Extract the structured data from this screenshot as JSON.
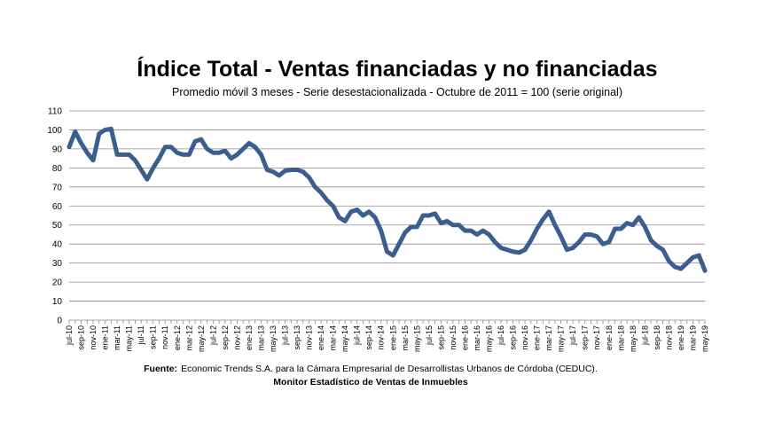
{
  "chart_data": {
    "type": "line",
    "title": "Índice Total - Ventas financiadas y no financiadas",
    "subtitle": "Promedio móvil 3 meses - Serie desestacionalizada - Octubre de 2011 = 100 (serie original)",
    "source_label": "Fuente:",
    "source_text": "Economic Trends S.A. para la Cámara Empresarial de Desarrollistas Urbanos de Córdoba (CEDUC).",
    "source_line2": "Monitor Estadístico de Ventas de Inmuebles",
    "categories": [
      "jul-10",
      null,
      "sep-10",
      null,
      "nov-10",
      null,
      "ene-11",
      null,
      "mar-11",
      null,
      "may-11",
      null,
      "jul-11",
      null,
      "sep-11",
      null,
      "nov-11",
      null,
      "ene-12",
      null,
      "mar-12",
      null,
      "may-12",
      null,
      "jul-12",
      null,
      "sep-12",
      null,
      "nov-12",
      null,
      "ene-13",
      null,
      "mar-13",
      null,
      "may-13",
      null,
      "jul-13",
      null,
      "sep-13",
      null,
      "nov-13",
      null,
      "ene-14",
      null,
      "mar-14",
      null,
      "may-14",
      null,
      "jul-14",
      null,
      "sep-14",
      null,
      "nov-14",
      null,
      "ene-15",
      null,
      "mar-15",
      null,
      "may-15",
      null,
      "jul-15",
      null,
      "sep-15",
      null,
      "nov-15",
      null,
      "ene-16",
      null,
      "mar-16",
      null,
      "may-16",
      null,
      "jul-16",
      null,
      "sep-16",
      null,
      "nov-16",
      null,
      "ene-17",
      null,
      "mar-17",
      null,
      "may-17",
      null,
      "jul-17",
      null,
      "sep-17",
      null,
      "nov-17",
      null,
      "ene-18",
      null,
      "mar-18",
      null,
      "may-18",
      null,
      "jul-18",
      null,
      "sep-18",
      null,
      "nov-18",
      null,
      "ene-19",
      null,
      "mar-19",
      null,
      "may-19"
    ],
    "series": [
      {
        "name": "Índice Total",
        "color": "#3a5f8f",
        "values": [
          91,
          99,
          93,
          88,
          84,
          98,
          100,
          100.5,
          87,
          87,
          87,
          84,
          79,
          74,
          80,
          85,
          91,
          91,
          88,
          87,
          87,
          94,
          95,
          90,
          88,
          88,
          89,
          85,
          87,
          90,
          93,
          91,
          87,
          79,
          78,
          76,
          78.5,
          79,
          79,
          78,
          75,
          70,
          67,
          63,
          60,
          54,
          52,
          57,
          58,
          55,
          57,
          54,
          47,
          36,
          34,
          40,
          46,
          49,
          49,
          55,
          55,
          56,
          51,
          52,
          50,
          50,
          47,
          47,
          45,
          47,
          45,
          41,
          38,
          37,
          36,
          35.5,
          37,
          42,
          48,
          53,
          57,
          50,
          44,
          37,
          38,
          41,
          45,
          45,
          44,
          40,
          41,
          48,
          48,
          51,
          50,
          54,
          49,
          42,
          39,
          37,
          31,
          28,
          27,
          30,
          33,
          34,
          26
        ]
      }
    ],
    "ylim": [
      0,
      110
    ],
    "yticks": [
      0,
      10,
      20,
      30,
      40,
      50,
      60,
      70,
      80,
      90,
      100,
      110
    ],
    "grid": true
  }
}
